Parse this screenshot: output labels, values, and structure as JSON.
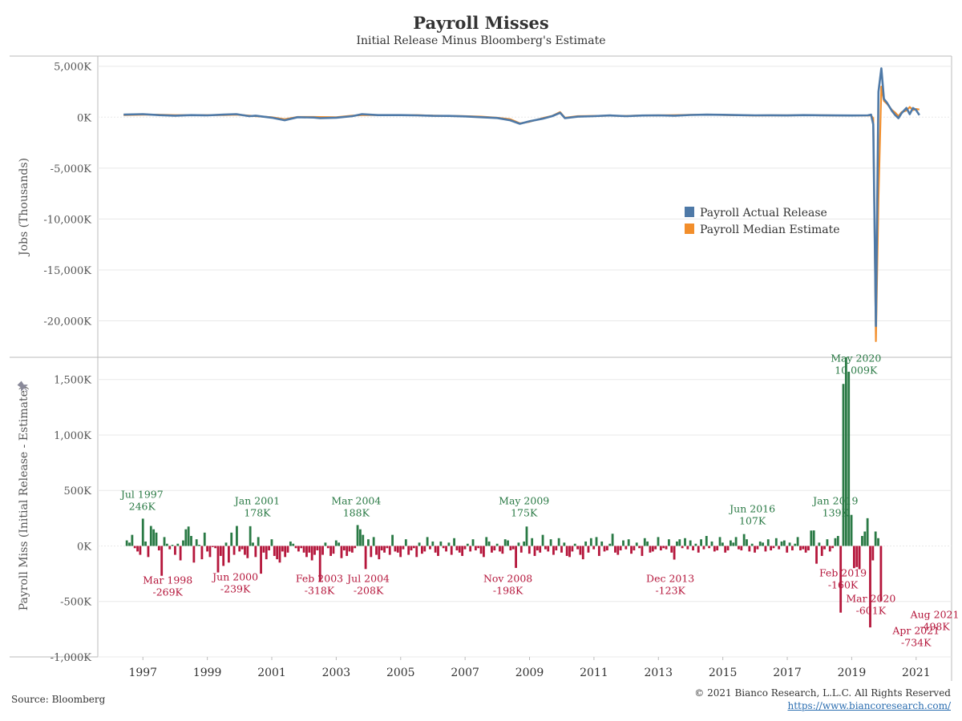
{
  "header": {
    "title": "Payroll Misses",
    "subtitle": "Initial Release Minus Bloomberg's Estimate"
  },
  "footer": {
    "source": "Source: Bloomberg",
    "copyright": "© 2021 Bianco Research, L.L.C. All Rights Reserved",
    "url": "https://www.biancoresearch.com/"
  },
  "colors": {
    "actual": "#4e79a7",
    "estimate": "#f28e2b",
    "beat": "#2a7a45",
    "miss": "#b5173c",
    "grid": "#e8e8e8",
    "axis": "#bbbbbb"
  },
  "chart_data": [
    {
      "type": "line",
      "ylabel": "Jobs (Thousands)",
      "ylim": [
        -23500,
        6000
      ],
      "yticks": [
        5000,
        0,
        -5000,
        -10000,
        -15000,
        -20000
      ],
      "ytick_labels": [
        "5,000K",
        "0K",
        "-5,000K",
        "-10,000K",
        "-15,000K",
        "-20,000K"
      ],
      "legend": {
        "position": "right-middle",
        "entries": [
          "Payroll Actual Release",
          "Payroll Median Estimate"
        ]
      },
      "series": [
        {
          "name": "Payroll Actual Release",
          "points": [
            [
              1996.9,
              250
            ],
            [
              1997.5,
              300
            ],
            [
              1998.0,
              200
            ],
            [
              1998.5,
              150
            ],
            [
              1999.0,
              200
            ],
            [
              1999.5,
              180
            ],
            [
              2000.0,
              250
            ],
            [
              2000.4,
              300
            ],
            [
              2000.8,
              100
            ],
            [
              2001.0,
              150
            ],
            [
              2001.5,
              -50
            ],
            [
              2001.9,
              -300
            ],
            [
              2002.3,
              0
            ],
            [
              2002.8,
              -30
            ],
            [
              2003.0,
              -100
            ],
            [
              2003.5,
              -50
            ],
            [
              2004.0,
              100
            ],
            [
              2004.3,
              300
            ],
            [
              2004.8,
              200
            ],
            [
              2005.5,
              200
            ],
            [
              2006.0,
              180
            ],
            [
              2006.5,
              130
            ],
            [
              2007.0,
              120
            ],
            [
              2007.5,
              80
            ],
            [
              2008.0,
              0
            ],
            [
              2008.5,
              -80
            ],
            [
              2008.9,
              -300
            ],
            [
              2009.2,
              -650
            ],
            [
              2009.5,
              -400
            ],
            [
              2009.9,
              -150
            ],
            [
              2010.2,
              100
            ],
            [
              2010.45,
              430
            ],
            [
              2010.6,
              -100
            ],
            [
              2011.0,
              50
            ],
            [
              2011.5,
              100
            ],
            [
              2012.0,
              170
            ],
            [
              2012.5,
              100
            ],
            [
              2013.0,
              160
            ],
            [
              2013.5,
              180
            ],
            [
              2014.0,
              150
            ],
            [
              2014.5,
              220
            ],
            [
              2015.0,
              250
            ],
            [
              2015.5,
              230
            ],
            [
              2016.0,
              200
            ],
            [
              2016.5,
              180
            ],
            [
              2017.0,
              190
            ],
            [
              2017.5,
              170
            ],
            [
              2018.0,
              200
            ],
            [
              2018.5,
              190
            ],
            [
              2019.0,
              170
            ],
            [
              2019.5,
              160
            ],
            [
              2020.0,
              180
            ],
            [
              2020.1,
              250
            ],
            [
              2020.17,
              -700
            ],
            [
              2020.25,
              -20500
            ],
            [
              2020.33,
              2500
            ],
            [
              2020.42,
              4800
            ],
            [
              2020.5,
              1800
            ],
            [
              2020.6,
              1400
            ],
            [
              2020.75,
              600
            ],
            [
              2020.85,
              200
            ],
            [
              2020.95,
              -100
            ],
            [
              2021.05,
              400
            ],
            [
              2021.2,
              900
            ],
            [
              2021.3,
              300
            ],
            [
              2021.4,
              900
            ],
            [
              2021.5,
              700
            ],
            [
              2021.6,
              200
            ]
          ]
        },
        {
          "name": "Payroll Median Estimate",
          "points": [
            [
              1996.9,
              200
            ],
            [
              1997.5,
              250
            ],
            [
              1998.0,
              240
            ],
            [
              1998.5,
              200
            ],
            [
              1999.0,
              200
            ],
            [
              1999.5,
              200
            ],
            [
              2000.0,
              200
            ],
            [
              2000.4,
              250
            ],
            [
              2000.8,
              150
            ],
            [
              2001.0,
              100
            ],
            [
              2001.5,
              0
            ],
            [
              2001.9,
              -200
            ],
            [
              2002.3,
              20
            ],
            [
              2002.8,
              20
            ],
            [
              2003.0,
              10
            ],
            [
              2003.5,
              0
            ],
            [
              2004.0,
              150
            ],
            [
              2004.3,
              200
            ],
            [
              2004.8,
              200
            ],
            [
              2005.5,
              190
            ],
            [
              2006.0,
              200
            ],
            [
              2006.5,
              150
            ],
            [
              2007.0,
              120
            ],
            [
              2007.5,
              100
            ],
            [
              2008.0,
              50
            ],
            [
              2008.5,
              -60
            ],
            [
              2008.9,
              -200
            ],
            [
              2009.2,
              -600
            ],
            [
              2009.5,
              -450
            ],
            [
              2009.9,
              -100
            ],
            [
              2010.2,
              120
            ],
            [
              2010.45,
              500
            ],
            [
              2010.6,
              -60
            ],
            [
              2011.0,
              100
            ],
            [
              2011.5,
              120
            ],
            [
              2012.0,
              150
            ],
            [
              2012.5,
              120
            ],
            [
              2013.0,
              170
            ],
            [
              2013.5,
              180
            ],
            [
              2014.0,
              200
            ],
            [
              2014.5,
              230
            ],
            [
              2015.0,
              240
            ],
            [
              2015.5,
              220
            ],
            [
              2016.0,
              190
            ],
            [
              2016.5,
              170
            ],
            [
              2017.0,
              180
            ],
            [
              2017.5,
              180
            ],
            [
              2018.0,
              190
            ],
            [
              2018.5,
              190
            ],
            [
              2019.0,
              170
            ],
            [
              2019.5,
              160
            ],
            [
              2020.0,
              160
            ],
            [
              2020.1,
              175
            ],
            [
              2020.17,
              -100
            ],
            [
              2020.25,
              -22000
            ],
            [
              2020.33,
              -8000
            ],
            [
              2020.42,
              3000
            ],
            [
              2020.5,
              1600
            ],
            [
              2020.6,
              1300
            ],
            [
              2020.75,
              700
            ],
            [
              2020.85,
              450
            ],
            [
              2020.95,
              100
            ],
            [
              2021.05,
              500
            ],
            [
              2021.2,
              650
            ],
            [
              2021.3,
              1000
            ],
            [
              2021.4,
              700
            ],
            [
              2021.5,
              800
            ],
            [
              2021.6,
              750
            ]
          ]
        }
      ]
    },
    {
      "type": "bar",
      "ylabel": "Payroll Miss (Initial Release - Estimate)",
      "ylim": [
        -1000,
        1700
      ],
      "yticks": [
        1500,
        1000,
        500,
        0,
        -500,
        -1000
      ],
      "ytick_labels": [
        "1,500K",
        "1,000K",
        "500K",
        "0K",
        "-500K",
        "-1,000K"
      ],
      "xlim": [
        1996.1,
        2022.6
      ],
      "xticks": [
        1997,
        1999,
        2001,
        2003,
        2005,
        2007,
        2009,
        2011,
        2013,
        2015,
        2017,
        2019,
        2021
      ],
      "xtick_labels": [
        "1997",
        "1999",
        "2001",
        "2003",
        "2005",
        "2007",
        "2009",
        "2011",
        "2013",
        "2015",
        "2017",
        "2019",
        "2021"
      ],
      "bar_width_years": 0.0833,
      "bar_values_start": 1997.0,
      "bar_values": [
        50,
        30,
        100,
        -20,
        -50,
        -80,
        246,
        40,
        -100,
        180,
        150,
        120,
        -40,
        -269,
        80,
        20,
        -30,
        10,
        -80,
        20,
        -130,
        50,
        150,
        175,
        90,
        -150,
        60,
        10,
        -120,
        120,
        -50,
        -100,
        -10,
        -20,
        -239,
        -90,
        -180,
        30,
        -150,
        120,
        -80,
        180,
        -50,
        -30,
        -80,
        -110,
        178,
        30,
        -100,
        80,
        -250,
        -60,
        -120,
        -40,
        60,
        -90,
        -120,
        -150,
        -50,
        -100,
        -60,
        40,
        20,
        -20,
        -50,
        -20,
        -60,
        -100,
        -60,
        -130,
        -80,
        -40,
        -318,
        -80,
        30,
        -20,
        -90,
        -70,
        50,
        30,
        -110,
        -40,
        -90,
        -50,
        -60,
        -20,
        188,
        150,
        100,
        -208,
        60,
        -100,
        80,
        -80,
        -120,
        -40,
        -60,
        -20,
        -80,
        100,
        -50,
        -60,
        -100,
        -30,
        60,
        -80,
        -40,
        -20,
        -100,
        30,
        -70,
        -50,
        80,
        -30,
        40,
        -60,
        -90,
        40,
        -20,
        -50,
        30,
        -80,
        70,
        -40,
        -60,
        -90,
        -30,
        20,
        -50,
        60,
        -40,
        -20,
        -70,
        -100,
        80,
        40,
        -60,
        -40,
        20,
        -50,
        -70,
        60,
        50,
        -40,
        -30,
        -198,
        30,
        -60,
        40,
        175,
        -70,
        70,
        -90,
        -40,
        -60,
        100,
        -30,
        -50,
        60,
        -80,
        -40,
        70,
        -60,
        30,
        -90,
        -100,
        -50,
        20,
        -30,
        -80,
        -120,
        40,
        -60,
        70,
        -30,
        80,
        -90,
        40,
        -50,
        -40,
        20,
        110,
        -60,
        -80,
        -40,
        50,
        -30,
        60,
        -70,
        -40,
        30,
        -20,
        -90,
        70,
        40,
        -60,
        -50,
        -30,
        80,
        -40,
        -20,
        -30,
        60,
        -60,
        -123,
        40,
        60,
        -20,
        70,
        -30,
        50,
        -40,
        20,
        -60,
        60,
        -30,
        90,
        -20,
        40,
        -50,
        -40,
        80,
        30,
        -60,
        -40,
        50,
        30,
        80,
        -30,
        -40,
        107,
        60,
        -50,
        20,
        -60,
        -30,
        40,
        30,
        -50,
        60,
        -40,
        -20,
        70,
        -30,
        40,
        50,
        -60,
        30,
        -40,
        20,
        80,
        -40,
        -30,
        -60,
        -40,
        139,
        140,
        -160,
        30,
        -90,
        -30,
        60,
        -50,
        -20,
        70,
        90,
        -601,
        1460,
        1700,
        1570,
        280,
        -200,
        -190,
        -210,
        90,
        130,
        250,
        -734,
        -130,
        130,
        70,
        -498
      ],
      "annotations": [
        {
          "label": "Jul 1997",
          "value_label": "246K",
          "kind": "beat",
          "x": 1997.5,
          "value": 246
        },
        {
          "label": "Mar 1998",
          "value_label": "-269K",
          "kind": "miss",
          "x": 1998.17,
          "value": -269
        },
        {
          "label": "Jun 2000",
          "value_label": "-239K",
          "kind": "miss",
          "x": 2000.42,
          "value": -239
        },
        {
          "label": "Jan 2001",
          "value_label": "178K",
          "kind": "beat",
          "x": 2001.0,
          "value": 178
        },
        {
          "label": "Feb 2003",
          "value_label": "-318K",
          "kind": "miss",
          "x": 2003.08,
          "value": -318
        },
        {
          "label": "Mar 2004",
          "value_label": "188K",
          "kind": "beat",
          "x": 2004.17,
          "value": 188
        },
        {
          "label": "Jul 2004",
          "value_label": "-208K",
          "kind": "miss",
          "x": 2004.5,
          "value": -208
        },
        {
          "label": "Nov 2008",
          "value_label": "-198K",
          "kind": "miss",
          "x": 2008.83,
          "value": -198
        },
        {
          "label": "May 2009",
          "value_label": "175K",
          "kind": "beat",
          "x": 2009.33,
          "value": 175
        },
        {
          "label": "Dec 2013",
          "value_label": "-123K",
          "kind": "miss",
          "x": 2013.92,
          "value": -123
        },
        {
          "label": "Jun 2016",
          "value_label": "107K",
          "kind": "beat",
          "x": 2016.42,
          "value": 107
        },
        {
          "label": "Jan 2019",
          "value_label": "139K",
          "kind": "beat",
          "x": 2019.0,
          "value": 139
        },
        {
          "label": "Feb 2019",
          "value_label": "-160K",
          "kind": "miss",
          "x": 2019.08,
          "value": -160
        },
        {
          "label": "Mar 2020",
          "value_label": "-601K",
          "kind": "miss",
          "x": 2020.17,
          "value": -601
        },
        {
          "label": "May 2020",
          "value_label": "10,009K",
          "kind": "beat",
          "x": 2020.33,
          "value": 10009
        },
        {
          "label": "Apr 2021",
          "value_label": "-734K",
          "kind": "miss",
          "x": 2021.25,
          "value": -734
        },
        {
          "label": "Aug 2021",
          "value_label": "-498K",
          "kind": "miss",
          "x": 2021.58,
          "value": -498
        }
      ]
    }
  ]
}
